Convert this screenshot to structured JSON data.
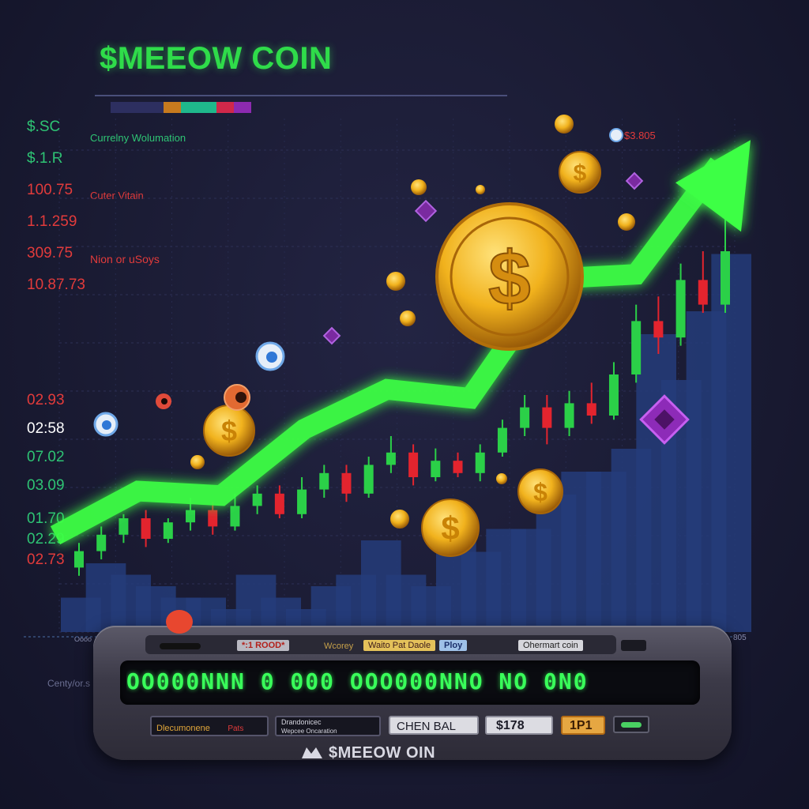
{
  "header": {
    "title": "$MEEOW COIN"
  },
  "colorbar": {
    "colors": [
      "#2d2f60",
      "#2d2f60",
      "#2d2f60",
      "#c77a1e",
      "#1fb88c",
      "#1fb88c",
      "#d0284a",
      "#8c2ab0"
    ]
  },
  "left_values_top": [
    {
      "text": "$.SC",
      "color": "#2ec474"
    },
    {
      "text": "$.1.R",
      "color": "#2ec474"
    },
    {
      "text": "100.75",
      "color": "#e23b3b"
    },
    {
      "text": "1.1.259",
      "color": "#e23b3b"
    },
    {
      "text": "309.75",
      "color": "#e23b3b"
    },
    {
      "text": "10.87.73",
      "color": "#e23b3b"
    }
  ],
  "left_values_bottom": [
    {
      "text": "02.93",
      "color": "#e23b3b"
    },
    {
      "text": "02:58",
      "color": "#ffffff"
    },
    {
      "text": "07.02",
      "color": "#2ec474"
    },
    {
      "text": "03.09",
      "color": "#2ec474"
    },
    {
      "text": "01.70",
      "color": "#2ec474"
    },
    {
      "text": "02.29",
      "color": "#2ec474"
    },
    {
      "text": "02.73",
      "color": "#e23b3b"
    }
  ],
  "annotations": {
    "currency_valuation": "Currelny Wolumation",
    "cutter_vitain": "Cuter Vitain",
    "nion_or_usoys": "Nion or uSoys",
    "price_tag": "$3.805",
    "axis_left": "Oooo",
    "axis_right": "805",
    "bottom_left": "Centy/or.s"
  },
  "chart_data": {
    "type": "line",
    "title": "$MEEOW COIN",
    "xlabel": "",
    "ylabel": "",
    "trend_line": {
      "x": [
        0,
        1,
        2,
        3,
        4,
        5,
        6,
        7,
        8
      ],
      "y": [
        4,
        14,
        13,
        28,
        37,
        35,
        62,
        63,
        88
      ],
      "color": "#3dff44"
    },
    "volume_bars": [
      3,
      6,
      5,
      4,
      3,
      3,
      2,
      5,
      3,
      2,
      4,
      5,
      8,
      5,
      4,
      8,
      7,
      9,
      9,
      12,
      14,
      14,
      16,
      26,
      22,
      28,
      33
    ],
    "candles": [
      {
        "o": 8,
        "c": 12,
        "h": 14,
        "l": 6
      },
      {
        "o": 12,
        "c": 16,
        "h": 18,
        "l": 10
      },
      {
        "o": 16,
        "c": 20,
        "h": 21,
        "l": 14
      },
      {
        "o": 20,
        "c": 15,
        "h": 22,
        "l": 13
      },
      {
        "o": 15,
        "c": 19,
        "h": 20,
        "l": 14
      },
      {
        "o": 19,
        "c": 22,
        "h": 25,
        "l": 17
      },
      {
        "o": 22,
        "c": 18,
        "h": 24,
        "l": 16
      },
      {
        "o": 18,
        "c": 23,
        "h": 26,
        "l": 17
      },
      {
        "o": 23,
        "c": 26,
        "h": 28,
        "l": 21
      },
      {
        "o": 26,
        "c": 21,
        "h": 28,
        "l": 20
      },
      {
        "o": 21,
        "c": 27,
        "h": 30,
        "l": 20
      },
      {
        "o": 27,
        "c": 31,
        "h": 33,
        "l": 25
      },
      {
        "o": 31,
        "c": 26,
        "h": 33,
        "l": 24
      },
      {
        "o": 26,
        "c": 33,
        "h": 35,
        "l": 25
      },
      {
        "o": 33,
        "c": 36,
        "h": 40,
        "l": 31
      },
      {
        "o": 36,
        "c": 30,
        "h": 38,
        "l": 28
      },
      {
        "o": 30,
        "c": 34,
        "h": 37,
        "l": 29
      },
      {
        "o": 34,
        "c": 31,
        "h": 36,
        "l": 30
      },
      {
        "o": 31,
        "c": 36,
        "h": 38,
        "l": 29
      },
      {
        "o": 36,
        "c": 42,
        "h": 44,
        "l": 35
      },
      {
        "o": 42,
        "c": 47,
        "h": 50,
        "l": 40
      },
      {
        "o": 47,
        "c": 42,
        "h": 50,
        "l": 38
      },
      {
        "o": 42,
        "c": 48,
        "h": 51,
        "l": 40
      },
      {
        "o": 48,
        "c": 45,
        "h": 53,
        "l": 43
      },
      {
        "o": 45,
        "c": 55,
        "h": 58,
        "l": 44
      },
      {
        "o": 55,
        "c": 68,
        "h": 72,
        "l": 53
      },
      {
        "o": 68,
        "c": 64,
        "h": 74,
        "l": 60
      },
      {
        "o": 64,
        "c": 78,
        "h": 82,
        "l": 62
      },
      {
        "o": 78,
        "c": 72,
        "h": 85,
        "l": 70
      },
      {
        "o": 72,
        "c": 85,
        "h": 95,
        "l": 70
      }
    ],
    "ylim": [
      0,
      100
    ]
  },
  "console": {
    "led": "",
    "tag1": "*:1 ROOD*",
    "tag2": "Wcorey",
    "tag3": "Waito Pat Daole",
    "tag4": "Ploy",
    "tag5": "Ohermart coin",
    "ticker": "OO000NNN 0 000 ООО000NNO NO 0N0",
    "field1_a": "Dlecumonene",
    "field1_b": "Pats",
    "field2_a": "Drandonicec",
    "field2_b": "Wepcee Oncaration",
    "field3": "CHEN BAL",
    "field4": "$178",
    "field5": "1P1",
    "brand": "$MEEOW OIN"
  }
}
